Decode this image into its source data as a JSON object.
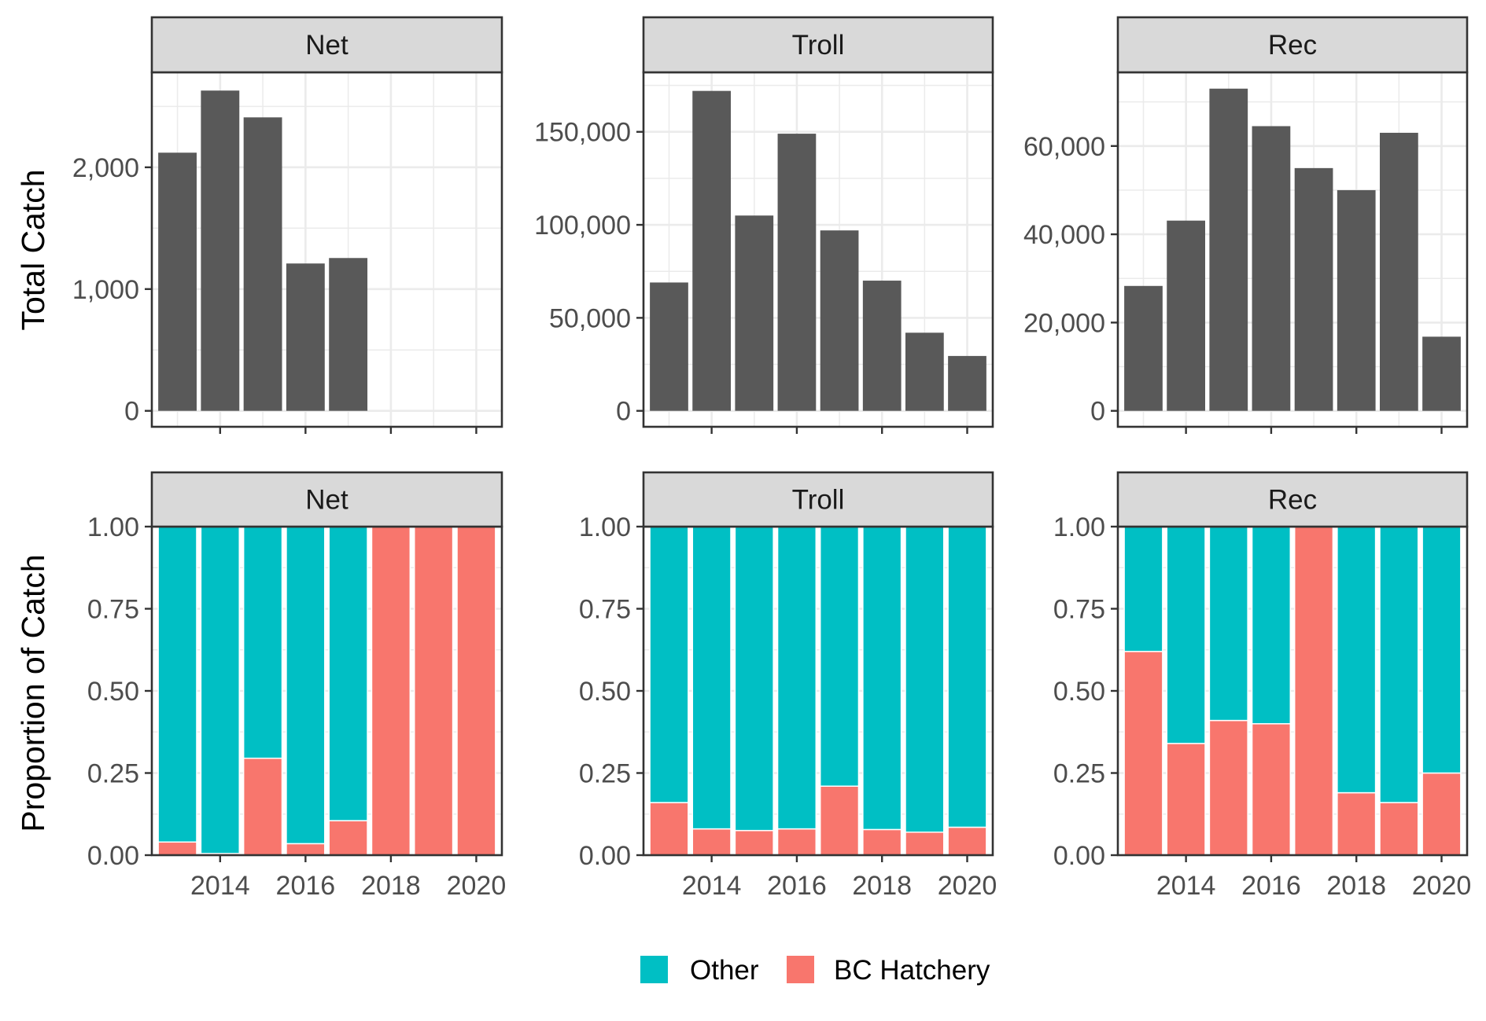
{
  "chart_data": [
    {
      "type": "bar",
      "panel": "Net",
      "metric": "total",
      "x": [
        2013,
        2014,
        2015,
        2016,
        2017,
        2018,
        2019,
        2020
      ],
      "values": [
        2120,
        2630,
        2410,
        1210,
        1255,
        0,
        0,
        0
      ],
      "ylim": [
        0,
        2780
      ],
      "yticks": [
        0,
        1000,
        2000
      ],
      "ytick_labels": [
        "0",
        "1,000",
        "2,000"
      ]
    },
    {
      "type": "bar",
      "panel": "Troll",
      "metric": "total",
      "x": [
        2013,
        2014,
        2015,
        2016,
        2017,
        2018,
        2019,
        2020
      ],
      "values": [
        69000,
        172000,
        105000,
        149000,
        97000,
        70000,
        42000,
        29500
      ],
      "ylim": [
        0,
        182000
      ],
      "yticks": [
        0,
        50000,
        100000,
        150000
      ],
      "ytick_labels": [
        "0",
        "50,000",
        "100,000",
        "150,000"
      ]
    },
    {
      "type": "bar",
      "panel": "Rec",
      "metric": "total",
      "x": [
        2013,
        2014,
        2015,
        2016,
        2017,
        2018,
        2019,
        2020
      ],
      "values": [
        28300,
        43100,
        73000,
        64500,
        55000,
        50000,
        63000,
        16800
      ],
      "ylim": [
        0,
        76700
      ],
      "yticks": [
        0,
        20000,
        40000,
        60000
      ],
      "ytick_labels": [
        "0",
        "20,000",
        "40,000",
        "60,000"
      ]
    },
    {
      "type": "bar",
      "panel": "Net",
      "metric": "proportion",
      "stacked": true,
      "x": [
        2013,
        2014,
        2015,
        2016,
        2017,
        2018,
        2019,
        2020
      ],
      "series": [
        {
          "name": "BC Hatchery",
          "values": [
            0.04,
            0.005,
            0.295,
            0.035,
            0.105,
            1.0,
            1.0,
            1.0
          ]
        },
        {
          "name": "Other",
          "values": [
            0.96,
            0.995,
            0.705,
            0.965,
            0.895,
            0.0,
            0.0,
            0.0
          ]
        }
      ],
      "ylim": [
        0,
        1.0
      ],
      "yticks": [
        0,
        0.25,
        0.5,
        0.75,
        1.0
      ],
      "ytick_labels": [
        "0.00",
        "0.25",
        "0.50",
        "0.75",
        "1.00"
      ],
      "xticks": [
        2014,
        2016,
        2018,
        2020
      ],
      "xtick_labels": [
        "2014",
        "2016",
        "2018",
        "2020"
      ]
    },
    {
      "type": "bar",
      "panel": "Troll",
      "metric": "proportion",
      "stacked": true,
      "x": [
        2013,
        2014,
        2015,
        2016,
        2017,
        2018,
        2019,
        2020
      ],
      "series": [
        {
          "name": "BC Hatchery",
          "values": [
            0.16,
            0.08,
            0.075,
            0.08,
            0.21,
            0.078,
            0.07,
            0.085
          ]
        },
        {
          "name": "Other",
          "values": [
            0.84,
            0.92,
            0.925,
            0.92,
            0.79,
            0.922,
            0.93,
            0.915
          ]
        }
      ],
      "ylim": [
        0,
        1.0
      ],
      "yticks": [
        0,
        0.25,
        0.5,
        0.75,
        1.0
      ],
      "ytick_labels": [
        "0.00",
        "0.25",
        "0.50",
        "0.75",
        "1.00"
      ],
      "xticks": [
        2014,
        2016,
        2018,
        2020
      ],
      "xtick_labels": [
        "2014",
        "2016",
        "2018",
        "2020"
      ]
    },
    {
      "type": "bar",
      "panel": "Rec",
      "metric": "proportion",
      "stacked": true,
      "x": [
        2013,
        2014,
        2015,
        2016,
        2017,
        2018,
        2019,
        2020
      ],
      "series": [
        {
          "name": "BC Hatchery",
          "values": [
            0.62,
            0.34,
            0.41,
            0.4,
            1.0,
            0.19,
            0.16,
            0.25
          ]
        },
        {
          "name": "Other",
          "values": [
            0.38,
            0.66,
            0.59,
            0.6,
            0.0,
            0.81,
            0.84,
            0.75
          ]
        }
      ],
      "ylim": [
        0,
        1.0
      ],
      "yticks": [
        0,
        0.25,
        0.5,
        0.75,
        1.0
      ],
      "ytick_labels": [
        "0.00",
        "0.25",
        "0.50",
        "0.75",
        "1.00"
      ],
      "xticks": [
        2014,
        2016,
        2018,
        2020
      ],
      "xtick_labels": [
        "2014",
        "2016",
        "2018",
        "2020"
      ]
    }
  ],
  "panels": [
    "Net",
    "Troll",
    "Rec"
  ],
  "ylabel_top": "Total Catch",
  "ylabel_bottom": "Proportion of Catch",
  "legend": {
    "position": "bottom",
    "items": [
      {
        "label": "Other",
        "color": "#00BFC4"
      },
      {
        "label": "BC Hatchery",
        "color": "#F8766D"
      }
    ]
  },
  "colors": {
    "total_bar": "#595959",
    "grid": "#ebebeb",
    "strip_bg": "#d9d9d9",
    "border": "#333333"
  }
}
